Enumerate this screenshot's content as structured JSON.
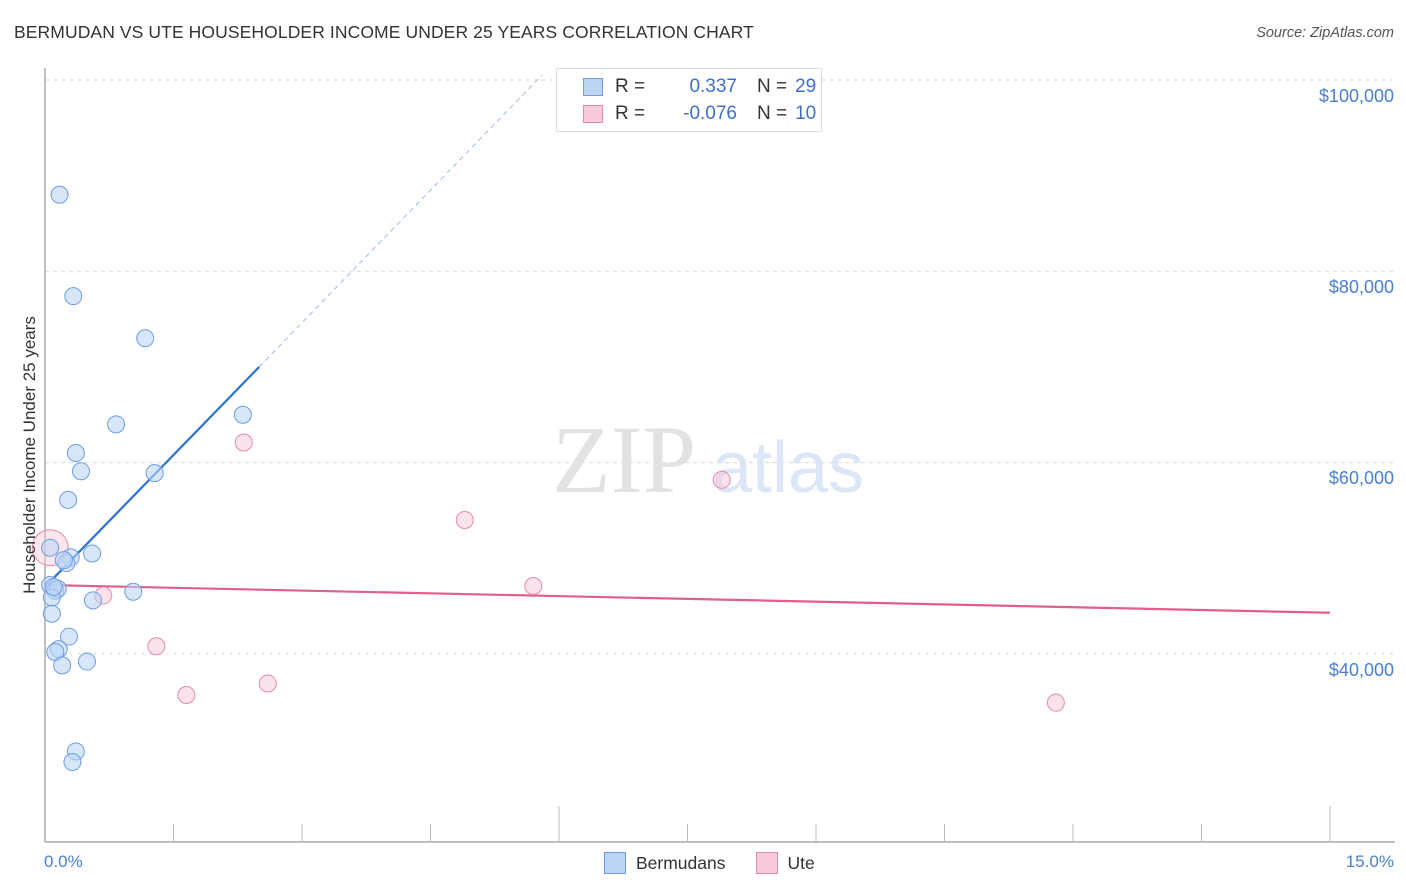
{
  "header": {
    "title": "BERMUDAN VS UTE HOUSEHOLDER INCOME UNDER 25 YEARS CORRELATION CHART",
    "source": "Source: ZipAtlas.com"
  },
  "watermark": {
    "zip": "ZIP",
    "atlas": "atlas"
  },
  "legend": {
    "rows": [
      {
        "r_label": "R =",
        "r_value": "0.337",
        "n_label": "N =",
        "n_value": "29",
        "color": "#a9c8f2",
        "border": "#6d9de0"
      },
      {
        "r_label": "R =",
        "r_value": "-0.076",
        "n_label": "N =",
        "n_value": "10",
        "color": "#f7c0d0",
        "border": "#e58aa8"
      }
    ]
  },
  "axes": {
    "ylabel": "Householder Income Under 25 years",
    "yticks": [
      "$100,000",
      "$80,000",
      "$60,000",
      "$40,000"
    ],
    "xticks": [
      "0.0%",
      "15.0%"
    ]
  },
  "bottom_legend": {
    "items": [
      {
        "label": "Bermudans",
        "color": "#bdd5f5",
        "border": "#6d9de0"
      },
      {
        "label": "Ute",
        "color": "#f9cad8",
        "border": "#e58aa8"
      }
    ]
  },
  "chart_data": {
    "type": "scatter",
    "title": "BERMUDAN VS UTE HOUSEHOLDER INCOME UNDER 25 YEARS CORRELATION CHART",
    "xlabel": "",
    "ylabel": "Householder Income Under 25 years",
    "xlim": [
      0,
      15
    ],
    "ylim": [
      22000,
      102000
    ],
    "x_tick_labels": [
      "0.0%",
      "15.0%"
    ],
    "y_tick_labels": [
      "$40,000",
      "$60,000",
      "$80,000",
      "$100,000"
    ],
    "grid": true,
    "legend_position": "bottom",
    "series": [
      {
        "name": "Bermudans",
        "color": "#6d9de0",
        "r": 0.337,
        "n": 29,
        "points": [
          [
            0.17,
            88000
          ],
          [
            0.33,
            77400
          ],
          [
            1.17,
            73000
          ],
          [
            2.31,
            65000
          ],
          [
            0.83,
            64000
          ],
          [
            0.36,
            61000
          ],
          [
            1.28,
            58900
          ],
          [
            0.42,
            59100
          ],
          [
            0.27,
            56100
          ],
          [
            0.06,
            51100
          ],
          [
            0.55,
            50500
          ],
          [
            0.3,
            50100
          ],
          [
            0.25,
            49500
          ],
          [
            0.06,
            47200
          ],
          [
            0.12,
            46600
          ],
          [
            0.15,
            46800
          ],
          [
            0.08,
            45900
          ],
          [
            1.03,
            46500
          ],
          [
            0.56,
            45600
          ],
          [
            0.08,
            44200
          ],
          [
            0.28,
            41800
          ],
          [
            0.16,
            40500
          ],
          [
            0.12,
            40200
          ],
          [
            0.2,
            38800
          ],
          [
            0.49,
            39200
          ],
          [
            0.36,
            29800
          ],
          [
            0.32,
            28700
          ],
          [
            0.1,
            47000
          ],
          [
            0.22,
            49800
          ]
        ],
        "trendline": {
          "x": [
            0,
            2.5
          ],
          "y": [
            47000,
            70000
          ],
          "dashed_extension_to": [
            5.8,
            100500
          ]
        }
      },
      {
        "name": "Ute",
        "color": "#e58aa8",
        "r": -0.076,
        "n": 10,
        "points": [
          [
            0.06,
            51100
          ],
          [
            2.32,
            62100
          ],
          [
            7.9,
            58200
          ],
          [
            4.9,
            54000
          ],
          [
            5.7,
            47100
          ],
          [
            0.68,
            46100
          ],
          [
            1.3,
            40800
          ],
          [
            1.65,
            35700
          ],
          [
            2.6,
            36900
          ],
          [
            11.8,
            34900
          ]
        ],
        "trendline": {
          "x": [
            0,
            15
          ],
          "y": [
            47200,
            44300
          ]
        }
      }
    ]
  }
}
